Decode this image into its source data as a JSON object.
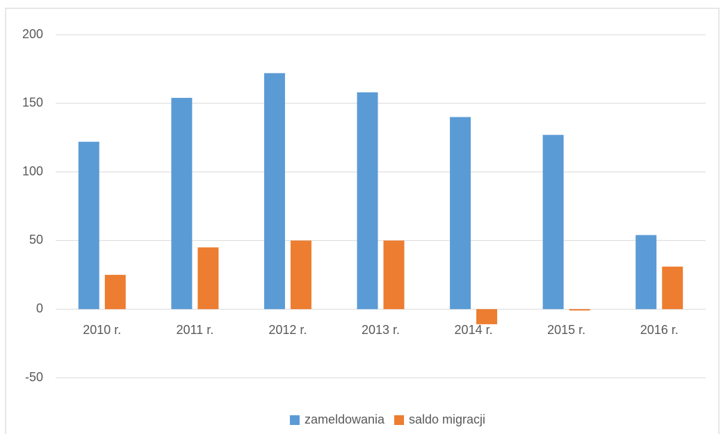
{
  "chart_data": {
    "type": "bar",
    "categories": [
      "2010 r.",
      "2011 r.",
      "2012 r.",
      "2013 r.",
      "2014 r.",
      "2015 r.",
      "2016 r."
    ],
    "series": [
      {
        "name": "zameldowania",
        "color": "#5b9bd5",
        "values": [
          122,
          154,
          172,
          158,
          140,
          127,
          54
        ]
      },
      {
        "name": "saldo migracji",
        "color": "#ed7d31",
        "values": [
          25,
          45,
          50,
          50,
          -11,
          -1,
          31
        ]
      }
    ],
    "ylim": [
      -50,
      200
    ],
    "yticks": [
      -50,
      0,
      50,
      100,
      150,
      200
    ],
    "grid": true,
    "legend": "bottom"
  }
}
